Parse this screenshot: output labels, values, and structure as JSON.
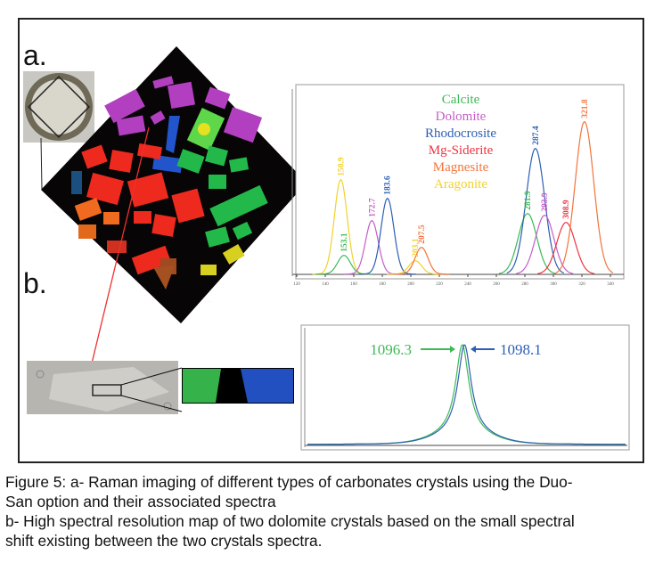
{
  "figure": {
    "panel_a_label": "a.",
    "panel_b_label": "b."
  },
  "caption": {
    "line1": "Figure 5: a- Raman imaging of different types of carbonates crystals using the Duo-",
    "line2": "San option and their associated spectra",
    "line3": "b- High spectral resolution map of two dolomite crystals based on the small spectral",
    "line4": "shift existing between the two crystals spectra."
  },
  "chart_data": [
    {
      "type": "line",
      "title": "",
      "xlabel": "",
      "ylabel": "",
      "xlim": [
        115,
        345
      ],
      "x_ticks": [
        120,
        140,
        160,
        180,
        200,
        220,
        240,
        260,
        280,
        300,
        320,
        340
      ],
      "grid": false,
      "legend_placement": "top-center",
      "legend": [
        {
          "name": "Calcite",
          "color": "#3dba55"
        },
        {
          "name": "Dolomite",
          "color": "#c55ec8"
        },
        {
          "name": "Rhodocrosite",
          "color": "#2d5fb4"
        },
        {
          "name": "Mg-Siderite",
          "color": "#ee3340"
        },
        {
          "name": "Magnesite",
          "color": "#f2743a"
        },
        {
          "name": "Aragonite",
          "color": "#f2d22a"
        }
      ],
      "peaks": [
        {
          "label": "150.9",
          "x": 150.9,
          "intensity": 106,
          "series": "Aragonite"
        },
        {
          "label": "153.1",
          "x": 153.1,
          "intensity": 21,
          "series": "Calcite"
        },
        {
          "label": "172.7",
          "x": 172.7,
          "intensity": 60,
          "series": "Dolomite"
        },
        {
          "label": "183.6",
          "x": 183.6,
          "intensity": 85,
          "series": "Rhodocrosite"
        },
        {
          "label": "203.1",
          "x": 203.1,
          "intensity": 15,
          "series": "Aragonite"
        },
        {
          "label": "207.5",
          "x": 207.5,
          "intensity": 30,
          "series": "Magnesite"
        },
        {
          "label": "281.9",
          "x": 281.9,
          "intensity": 68,
          "series": "Calcite"
        },
        {
          "label": "287.4",
          "x": 287.4,
          "intensity": 141,
          "series": "Rhodocrosite"
        },
        {
          "label": "293.9",
          "x": 293.9,
          "intensity": 66,
          "series": "Dolomite"
        },
        {
          "label": "308.9",
          "x": 308.9,
          "intensity": 58,
          "series": "Mg-Siderite"
        },
        {
          "label": "321.8",
          "x": 321.8,
          "intensity": 171,
          "series": "Magnesite"
        }
      ]
    },
    {
      "type": "line",
      "title": "",
      "xlabel": "",
      "ylabel": "",
      "grid": false,
      "series": [
        {
          "name": "1096.3",
          "peak_x": 1096.3,
          "color": "#3dba55",
          "arrow": "right"
        },
        {
          "name": "1098.1",
          "peak_x": 1098.1,
          "color": "#2d5fb4",
          "arrow": "left"
        }
      ]
    }
  ]
}
